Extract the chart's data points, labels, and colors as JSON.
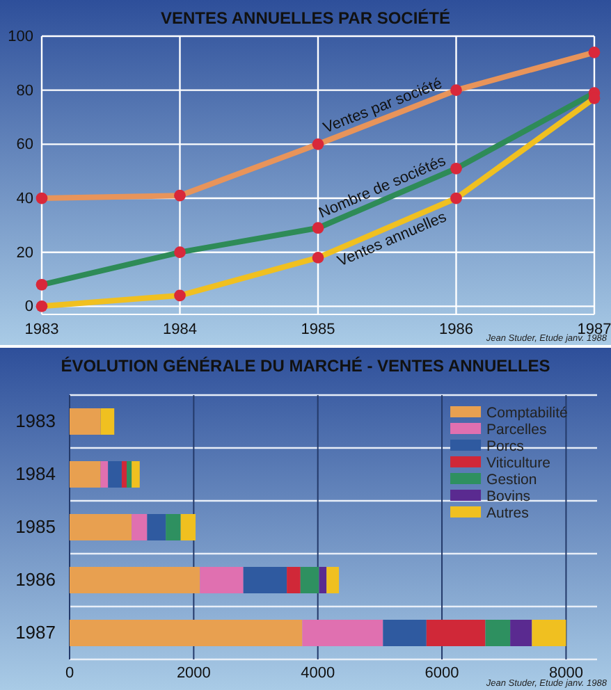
{
  "chart_data": [
    {
      "type": "line",
      "title": "VENTES ANNUELLES PAR SOCIÉTÉ",
      "x": [
        1983,
        1984,
        1985,
        1986,
        1987
      ],
      "xlim": [
        1983,
        1987
      ],
      "xticks": [
        1983,
        1984,
        1985,
        1986,
        1987
      ],
      "ylim": [
        -3,
        100
      ],
      "yticks": [
        0,
        20,
        40,
        60,
        80,
        100
      ],
      "grid": true,
      "marker": "circle",
      "series": [
        {
          "name": "Ventes par société",
          "color": "#e8945a",
          "values": [
            40,
            41,
            60,
            80,
            94
          ]
        },
        {
          "name": "Nombre de sociétés",
          "color": "#2e8b57",
          "values": [
            8,
            20,
            29,
            51,
            79
          ]
        },
        {
          "name": "Ventes annuelles",
          "color": "#f0c020",
          "values": [
            0,
            4,
            18,
            40,
            77
          ]
        }
      ],
      "annotations": [
        "Jean Studer, Etude janv. 1988"
      ]
    },
    {
      "type": "bar",
      "orientation": "horizontal",
      "stacked": true,
      "title": "ÉVOLUTION GÉNÉRALE DU MARCHÉ - VENTES ANNUELLES",
      "categories": [
        "1983",
        "1984",
        "1985",
        "1986",
        "1987"
      ],
      "xlim": [
        0,
        8500
      ],
      "xticks": [
        0,
        2000,
        4000,
        6000,
        8000
      ],
      "grid": "x",
      "legend": "top right",
      "series": [
        {
          "name": "Comptabilité",
          "color": "#e8a050",
          "values": [
            500,
            500,
            1000,
            2100,
            3750
          ]
        },
        {
          "name": "Parcelles",
          "color": "#e070b0",
          "values": [
            null,
            120,
            250,
            700,
            1300
          ]
        },
        {
          "name": "Porcs",
          "color": "#2f5aa0",
          "values": [
            null,
            220,
            300,
            700,
            700
          ]
        },
        {
          "name": "Viticulture",
          "color": "#d02838",
          "values": [
            null,
            80,
            null,
            220,
            950
          ]
        },
        {
          "name": "Gestion",
          "color": "#2e9060",
          "values": [
            null,
            80,
            240,
            300,
            400
          ]
        },
        {
          "name": "Bovins",
          "color": "#5a2a90",
          "values": [
            null,
            null,
            null,
            120,
            350
          ]
        },
        {
          "name": "Autres",
          "color": "#f0c020",
          "values": [
            220,
            130,
            240,
            200,
            550
          ]
        }
      ],
      "annotations": [
        "Jean Studer, Etude janv. 1988"
      ]
    }
  ]
}
